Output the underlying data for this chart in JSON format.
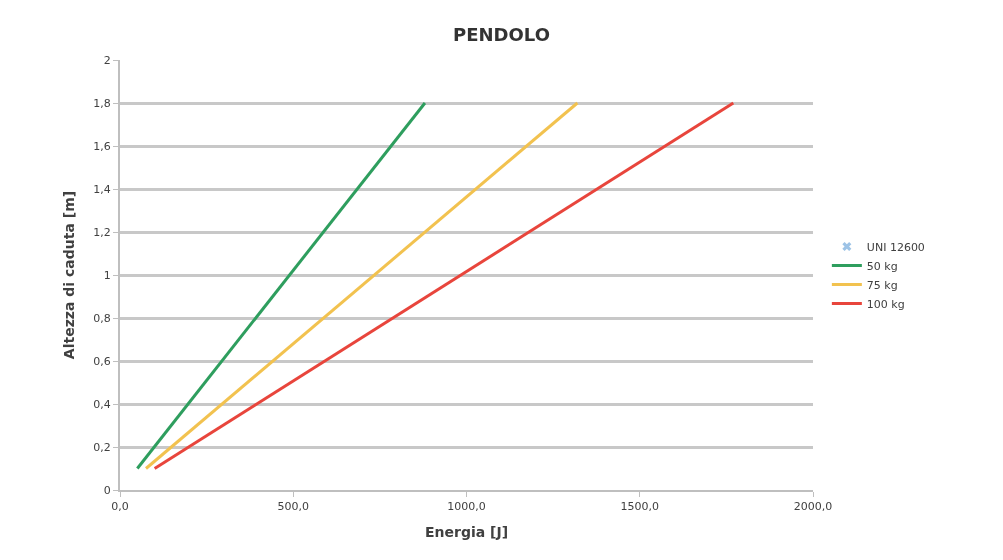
{
  "chart_data": {
    "type": "line",
    "title": "PENDOLO",
    "xlabel": "Energia [J]",
    "ylabel": "Altezza di caduta [m]",
    "series": [
      {
        "name": "UNI 12600",
        "type": "scatter",
        "marker": "cross",
        "color": "#9dc3e6"
      },
      {
        "name": "50 kg",
        "color": "#2e9e5e",
        "x": [
          50,
          880
        ],
        "values": [
          0.1,
          1.8
        ]
      },
      {
        "name": "75 kg",
        "color": "#f2c24f",
        "x": [
          75,
          1320
        ],
        "values": [
          0.1,
          1.8
        ]
      },
      {
        "name": "100 kg",
        "color": "#e8453c",
        "x": [
          100,
          1770
        ],
        "values": [
          0.1,
          1.8
        ]
      }
    ],
    "xlim": [
      0,
      2000
    ],
    "xticks": [
      {
        "value": 0,
        "label": "0,0"
      },
      {
        "value": 500,
        "label": "500,0"
      },
      {
        "value": 1000,
        "label": "1000,0"
      },
      {
        "value": 1500,
        "label": "1500,0"
      },
      {
        "value": 2000,
        "label": "2000,0"
      }
    ],
    "ylim": [
      0,
      2
    ],
    "yticks": [
      0,
      {
        "value": 0.2,
        "label": "0,2"
      },
      {
        "value": 0.4,
        "label": "0,4"
      },
      {
        "value": 0.6,
        "label": "0,6"
      },
      {
        "value": 0.8,
        "label": "0,8"
      },
      1,
      {
        "value": 1.2,
        "label": "1,2"
      },
      {
        "value": 1.4,
        "label": "1,4"
      },
      {
        "value": 1.6,
        "label": "1,6"
      },
      {
        "value": 1.8,
        "label": "1,8"
      },
      2
    ],
    "grid": "y",
    "legend": "right",
    "marker": "none",
    "line_style": "solid"
  }
}
